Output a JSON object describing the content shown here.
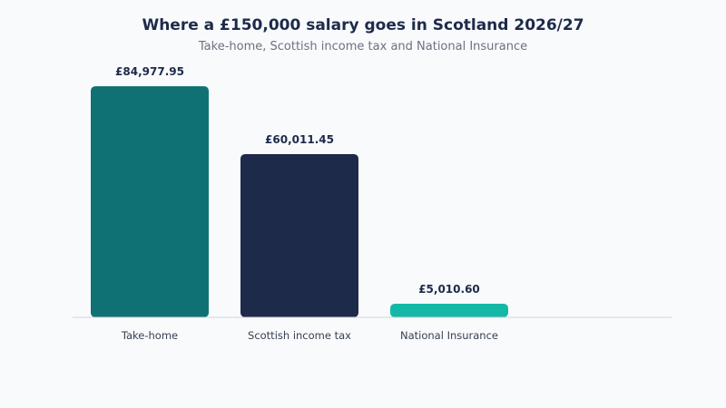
{
  "chart_data": {
    "type": "bar",
    "title": "Where a £150,000 salary goes in Scotland 2026/27",
    "subtitle": "Take-home, Scottish income tax and National Insurance",
    "categories": [
      "Take-home",
      "Scottish income tax",
      "National Insurance"
    ],
    "values": [
      84977.95,
      60011.45,
      5010.6
    ],
    "value_labels": [
      "£84,977.95",
      "£60,011.45",
      "£5,010.60"
    ],
    "colors": [
      "#0f7173",
      "#1e2a4a",
      "#14b8a6"
    ],
    "xlabel": "",
    "ylabel": "",
    "ylim": [
      0,
      100000
    ],
    "grid": false,
    "legend": "none"
  }
}
